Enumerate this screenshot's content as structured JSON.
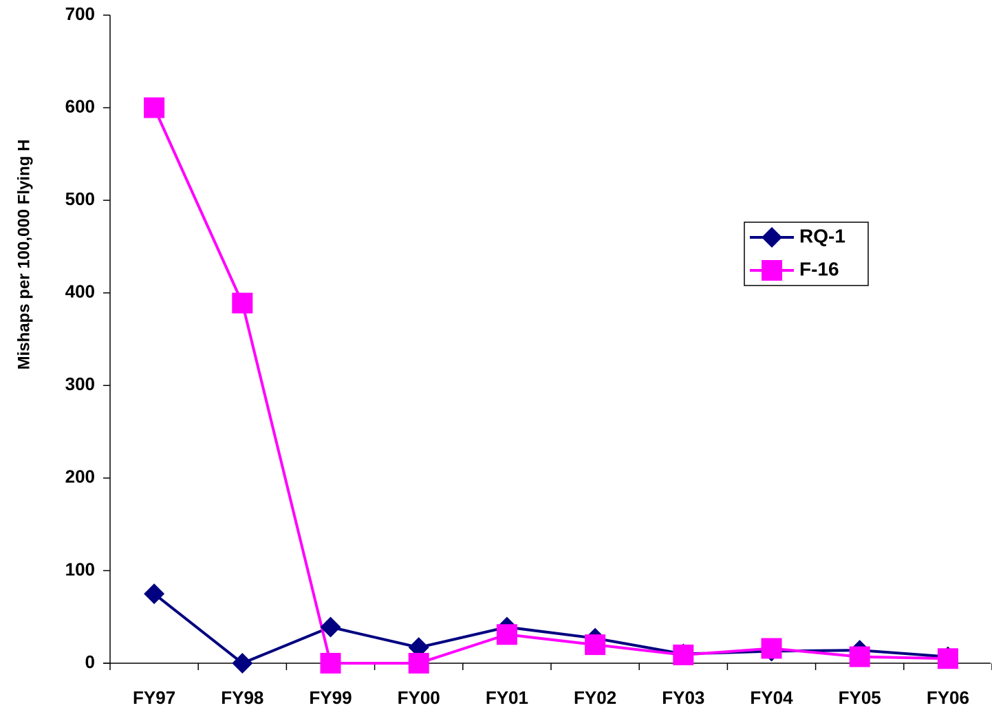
{
  "chart_data": {
    "type": "line",
    "y_label": "Mishaps per 100,000 Flying H",
    "categories": [
      "FY97",
      "FY98",
      "FY99",
      "FY00",
      "FY01",
      "FY02",
      "FY03",
      "FY04",
      "FY05",
      "FY06"
    ],
    "series": [
      {
        "name": "RQ-1",
        "color": "#000080",
        "marker": "diamond",
        "values": [
          75,
          0,
          39,
          17,
          39,
          27,
          10,
          13,
          14,
          7
        ]
      },
      {
        "name": "F-16",
        "color": "#ff00ff",
        "marker": "square",
        "values": [
          600,
          389,
          0,
          0,
          31,
          20,
          9,
          16,
          7,
          5
        ]
      }
    ],
    "ylim": [
      0,
      700
    ],
    "yticks": [
      0,
      100,
      200,
      300,
      400,
      500,
      600,
      700
    ],
    "legend": "right"
  }
}
